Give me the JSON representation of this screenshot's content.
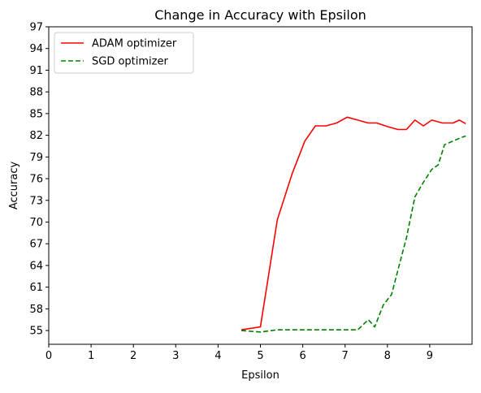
{
  "chart_data": {
    "type": "line",
    "title": "Change in Accuracy with Epsilon",
    "xlabel": "Epsilon",
    "ylabel": "Accuracy",
    "xlim": [
      0,
      10
    ],
    "ylim": [
      53.1,
      97
    ],
    "xticks": [
      0,
      1,
      2,
      3,
      4,
      5,
      6,
      7,
      8,
      9
    ],
    "yticks": [
      55,
      58,
      61,
      64,
      67,
      70,
      73,
      76,
      79,
      82,
      85,
      88,
      91,
      94,
      97
    ],
    "grid": false,
    "legend_position": "upper-left",
    "series": [
      {
        "name": "ADAM optimizer",
        "color": "#ff0000",
        "style": "solid",
        "x": [
          4.55,
          5.0,
          5.4,
          5.75,
          6.05,
          6.3,
          6.55,
          6.8,
          7.05,
          7.3,
          7.55,
          7.75,
          8.0,
          8.25,
          8.45,
          8.65,
          8.85,
          9.05,
          9.3,
          9.55,
          9.7,
          9.85
        ],
        "y": [
          55.1,
          55.5,
          70.3,
          76.7,
          81.2,
          83.3,
          83.3,
          83.7,
          84.5,
          84.1,
          83.7,
          83.7,
          83.2,
          82.8,
          82.8,
          84.1,
          83.3,
          84.1,
          83.7,
          83.7,
          84.1,
          83.6
        ]
      },
      {
        "name": "SGD optimizer",
        "color": "#008000",
        "style": "dashed",
        "x": [
          4.55,
          5.0,
          5.4,
          5.8,
          6.3,
          6.8,
          7.3,
          7.55,
          7.7,
          7.9,
          8.1,
          8.3,
          8.45,
          8.65,
          8.85,
          9.05,
          9.2,
          9.35,
          9.55,
          9.75,
          9.85
        ],
        "y": [
          55.0,
          54.8,
          55.1,
          55.1,
          55.1,
          55.1,
          55.1,
          56.5,
          55.5,
          58.5,
          60.0,
          64.5,
          67.8,
          73.5,
          75.5,
          77.3,
          77.9,
          80.7,
          81.2,
          81.7,
          81.9
        ]
      }
    ]
  }
}
